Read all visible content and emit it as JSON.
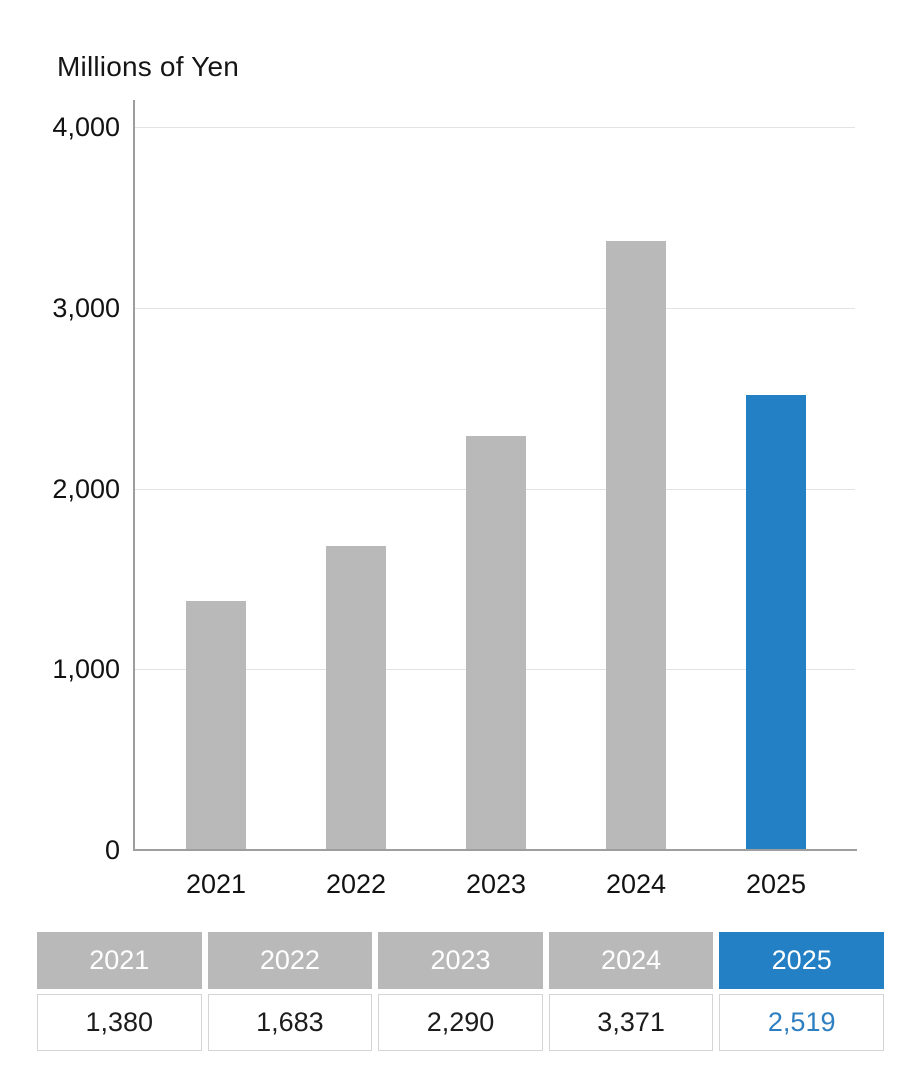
{
  "title": "Millions of Yen",
  "chart_data": {
    "type": "bar",
    "title": "Millions of Yen",
    "categories": [
      "2021",
      "2022",
      "2023",
      "2024",
      "2025"
    ],
    "values": [
      1380,
      1683,
      2290,
      3371,
      2519
    ],
    "value_labels": [
      "1,380",
      "1,683",
      "2,290",
      "3,371",
      "2,519"
    ],
    "xlabel": "",
    "ylabel": "Millions of Yen",
    "ylim": [
      0,
      4000
    ],
    "yticks": [
      0,
      1000,
      2000,
      3000,
      4000
    ],
    "ytick_labels": [
      "0",
      "1,000",
      "2,000",
      "3,000",
      "4,000"
    ],
    "grid": true,
    "legend": false,
    "highlight_index": 4,
    "bar_color_default": "#b9b9b9",
    "bar_color_highlight": "#2380c4"
  },
  "table": {
    "headers": [
      "2021",
      "2022",
      "2023",
      "2024",
      "2025"
    ],
    "values": [
      "1,380",
      "1,683",
      "2,290",
      "3,371",
      "2,519"
    ],
    "highlight_index": 4,
    "header_bg": "#b9b9b9",
    "header_bg_highlight": "#2380c4",
    "header_text_color": "#ffffff",
    "value_text_color": "#1c1c1c",
    "value_text_color_highlight": "#2e7fc1"
  },
  "colors": {
    "background": "#ffffff",
    "axis": "#9e9e9e",
    "gridline": "#e3e3e3",
    "text": "#121212"
  }
}
